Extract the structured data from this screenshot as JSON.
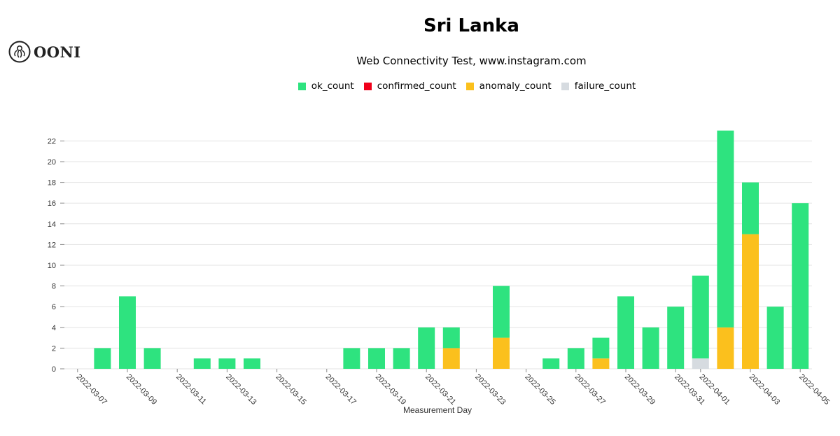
{
  "logo": {
    "text": "OONI"
  },
  "title": "Sri Lanka",
  "subtitle": "Web Connectivity Test, www.instagram.com",
  "colors": {
    "ok_count": "#2ee37f",
    "confirmed_count": "#f0001a",
    "anomaly_count": "#fbc01d",
    "failure_count": "#d6dbe0"
  },
  "legend": [
    {
      "key": "ok_count",
      "label": "ok_count"
    },
    {
      "key": "confirmed_count",
      "label": "confirmed_count"
    },
    {
      "key": "anomaly_count",
      "label": "anomaly_count"
    },
    {
      "key": "failure_count",
      "label": "failure_count"
    }
  ],
  "chart_data": {
    "type": "bar",
    "stacked": true,
    "xlabel": "Measurement Day",
    "ylabel": "",
    "ylim": [
      0,
      23
    ],
    "yticks": [
      0,
      2,
      4,
      6,
      8,
      10,
      12,
      14,
      16,
      18,
      20,
      22
    ],
    "grid": true,
    "legend_position": "top",
    "categories": [
      "2022-03-07",
      "2022-03-08",
      "2022-03-09",
      "2022-03-10",
      "2022-03-11",
      "2022-03-12",
      "2022-03-13",
      "2022-03-14",
      "2022-03-15",
      "2022-03-16",
      "2022-03-17",
      "2022-03-18",
      "2022-03-19",
      "2022-03-20",
      "2022-03-21",
      "2022-03-22",
      "2022-03-23",
      "2022-03-24",
      "2022-03-25",
      "2022-03-26",
      "2022-03-27",
      "2022-03-28",
      "2022-03-29",
      "2022-03-30",
      "2022-03-31",
      "2022-04-01",
      "2022-04-02",
      "2022-04-03",
      "2022-04-04",
      "2022-04-05"
    ],
    "tick_labels": [
      "2022-03-07",
      "2022-03-09",
      "2022-03-11",
      "2022-03-13",
      "2022-03-15",
      "2022-03-17",
      "2022-03-19",
      "2022-03-21",
      "2022-03-23",
      "2022-03-25",
      "2022-03-27",
      "2022-03-29",
      "2022-03-31",
      "2022-04-01",
      "2022-04-03",
      "2022-04-05"
    ],
    "series": [
      {
        "name": "failure_count",
        "values": [
          0,
          0,
          0,
          0,
          0,
          0,
          0,
          0,
          0,
          0,
          0,
          0,
          0,
          0,
          0,
          0,
          0,
          0,
          0,
          0,
          0,
          0,
          0,
          0,
          0,
          1,
          0,
          0,
          0,
          0
        ]
      },
      {
        "name": "anomaly_count",
        "values": [
          0,
          0,
          0,
          0,
          0,
          0,
          0,
          0,
          0,
          0,
          0,
          0,
          0,
          0,
          0,
          2,
          0,
          3,
          0,
          0,
          0,
          1,
          0,
          0,
          0,
          0,
          4,
          13,
          0,
          0
        ]
      },
      {
        "name": "confirmed_count",
        "values": [
          0,
          0,
          0,
          0,
          0,
          0,
          0,
          0,
          0,
          0,
          0,
          0,
          0,
          0,
          0,
          0,
          0,
          0,
          0,
          0,
          0,
          0,
          0,
          0,
          0,
          0,
          0,
          0,
          0,
          0
        ]
      },
      {
        "name": "ok_count",
        "values": [
          0,
          2,
          7,
          2,
          0,
          1,
          1,
          1,
          0,
          0,
          0,
          2,
          2,
          2,
          4,
          2,
          0,
          5,
          0,
          1,
          2,
          2,
          7,
          4,
          6,
          8,
          19,
          5,
          6,
          16
        ]
      }
    ]
  }
}
